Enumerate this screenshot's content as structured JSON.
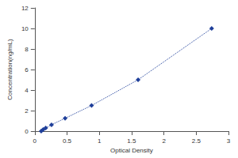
{
  "chart_data": {
    "type": "line",
    "x_label": "Optical Density",
    "y_label": "Concentration(ng/mL)",
    "x": [
      0.1,
      0.13,
      0.17,
      0.26,
      0.47,
      0.88,
      1.6,
      2.74
    ],
    "values": [
      0,
      0.156,
      0.312,
      0.625,
      1.25,
      2.5,
      5,
      10
    ],
    "color": "#1f3f9a",
    "marker": "diamond",
    "line_style": "dotted",
    "xlim": [
      0,
      3
    ],
    "xticks": [
      0,
      0.5,
      1,
      1.5,
      2,
      2.5,
      3
    ],
    "ylim": [
      0,
      12
    ],
    "yticks": [
      0,
      2,
      4,
      6,
      8,
      10,
      12
    ],
    "grid": false
  }
}
